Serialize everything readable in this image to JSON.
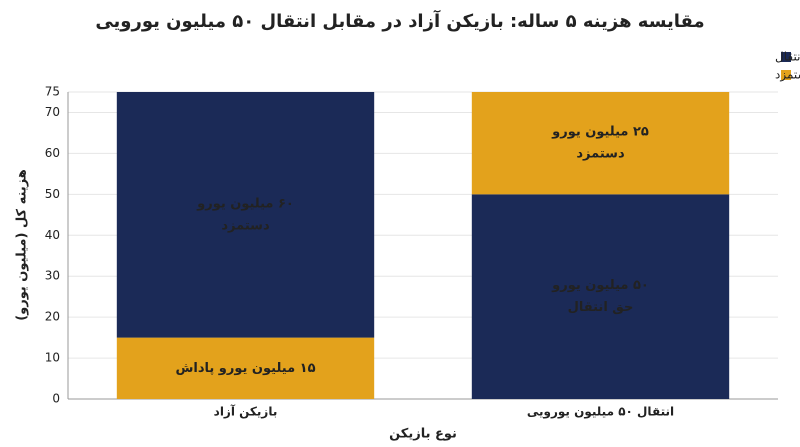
{
  "chart_data": {
    "type": "stacked_bar",
    "title": "مقایسه هزینه ۵ ساله: بازیکن آزاد در مقابل انتقال ۵۰ میلیون یورویی",
    "x_label": "نوع بازیکن",
    "y_label": "هزینه کل (میلیون یورو)",
    "categories": [
      "بازیکن آزاد",
      "انتقال ۵۰ میلیون یورویی"
    ],
    "series": [
      {
        "name": "سرمه‌ای: دستمزد / حق انتقال",
        "color": "#1b2a57",
        "values": [
          60,
          50
        ],
        "value_labels": [
          [
            "۶۰ میلیون یورو",
            "دستمزد"
          ],
          [
            "۵۰ میلیون یورو",
            "حق انتقال"
          ]
        ]
      },
      {
        "name": "کهربایی: پاداش / دستمزد",
        "color": "#e3a21c",
        "values": [
          15,
          25
        ],
        "value_labels": [
          [
            "۱۵ میلیون یورو پاداش"
          ],
          [
            "۲۵ میلیون یورو",
            "دستمزد"
          ]
        ]
      }
    ],
    "stack_order": [
      [
        1,
        0
      ],
      [
        0,
        1
      ]
    ],
    "ylim": [
      0,
      75
    ],
    "yticks": [
      0,
      10,
      20,
      30,
      40,
      50,
      60,
      70,
      75
    ],
    "grid": true,
    "legend": "top-right"
  }
}
